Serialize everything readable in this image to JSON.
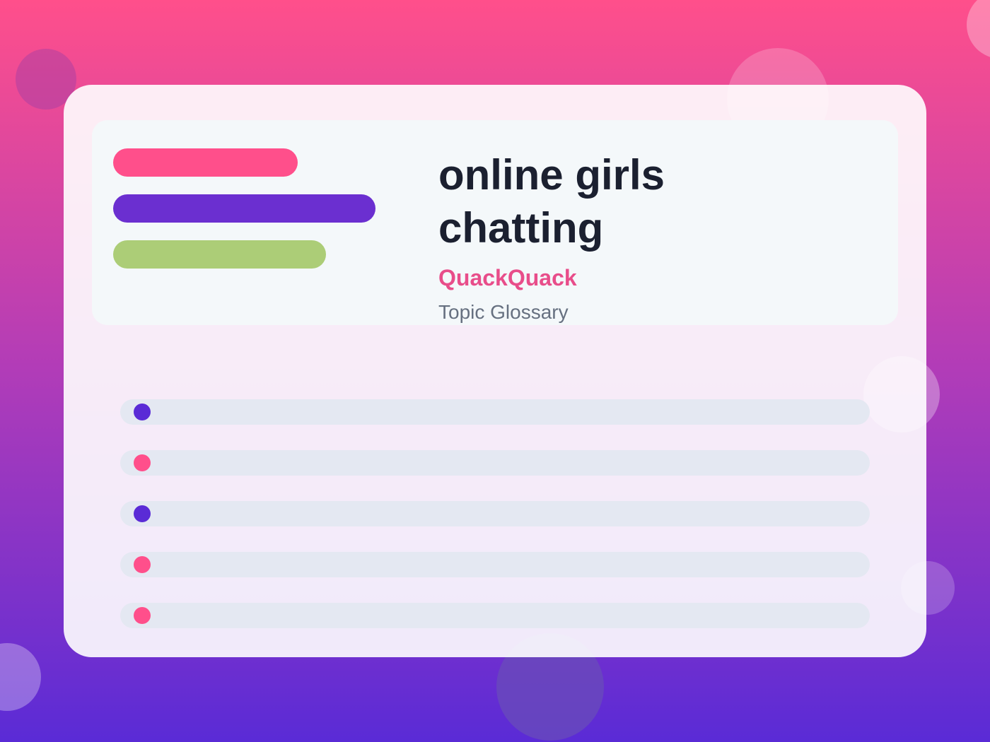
{
  "header": {
    "title_lines": [
      "online girls",
      "chatting"
    ],
    "brand": "QuackQuack",
    "subtitle": "Topic Glossary"
  }
}
